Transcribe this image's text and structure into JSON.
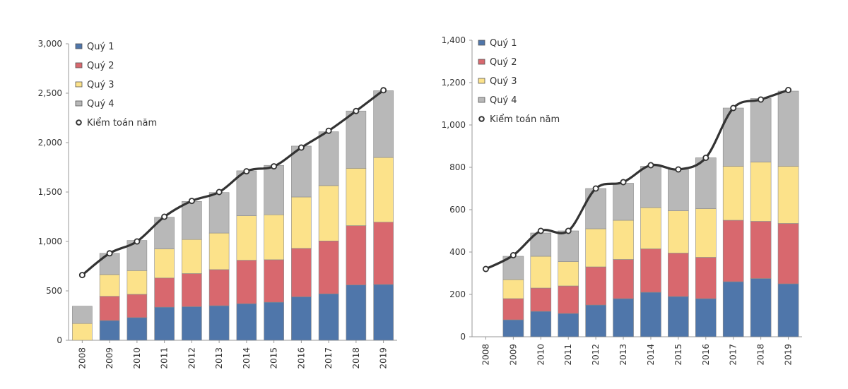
{
  "chart_data": [
    {
      "type": "bar",
      "stacked": true,
      "categories": [
        "2008",
        "2009",
        "2010",
        "2011",
        "2012",
        "2013",
        "2014",
        "2015",
        "2016",
        "2017",
        "2018",
        "2019"
      ],
      "ylim": [
        0,
        3000
      ],
      "yticks": [
        0,
        500,
        1000,
        1500,
        2000,
        2500,
        3000
      ],
      "ytick_labels": [
        "0",
        "500",
        "1,000",
        "1,500",
        "2,000",
        "2,500",
        "3,000"
      ],
      "series": [
        {
          "name": "Quý 1",
          "values": [
            0,
            200,
            230,
            335,
            340,
            350,
            370,
            385,
            440,
            470,
            560,
            565
          ]
        },
        {
          "name": "Quý 2",
          "values": [
            0,
            245,
            235,
            295,
            335,
            365,
            440,
            430,
            490,
            535,
            600,
            630
          ]
        },
        {
          "name": "Quý 3",
          "values": [
            170,
            220,
            240,
            295,
            345,
            370,
            450,
            455,
            520,
            560,
            580,
            655
          ]
        },
        {
          "name": "Quý 4",
          "values": [
            175,
            215,
            305,
            320,
            385,
            410,
            455,
            500,
            515,
            545,
            580,
            675
          ]
        }
      ],
      "line": {
        "name": "Kiểm toán năm",
        "values": [
          660,
          880,
          1000,
          1250,
          1410,
          1500,
          1710,
          1760,
          1950,
          2120,
          2320,
          2530
        ]
      },
      "legend": [
        "Quý 1",
        "Quý 2",
        "Quý 3",
        "Quý 4",
        "Kiểm toán năm"
      ],
      "legend_position": "top-left"
    },
    {
      "type": "bar",
      "stacked": true,
      "categories": [
        "2008",
        "2009",
        "2010",
        "2011",
        "2012",
        "2013",
        "2014",
        "2015",
        "2016",
        "2017",
        "2018",
        "2019"
      ],
      "ylim": [
        0,
        1400
      ],
      "yticks": [
        0,
        200,
        400,
        600,
        800,
        1000,
        1200,
        1400
      ],
      "ytick_labels": [
        "0",
        "200",
        "400",
        "600",
        "800",
        "1,000",
        "1,200",
        "1,400"
      ],
      "series": [
        {
          "name": "Quý 1",
          "values": [
            0,
            80,
            120,
            110,
            150,
            180,
            210,
            190,
            180,
            260,
            275,
            250
          ]
        },
        {
          "name": "Quý 2",
          "values": [
            0,
            100,
            110,
            130,
            180,
            185,
            205,
            205,
            195,
            290,
            270,
            285
          ]
        },
        {
          "name": "Quý 3",
          "values": [
            0,
            90,
            150,
            115,
            180,
            185,
            195,
            200,
            230,
            255,
            280,
            270
          ]
        },
        {
          "name": "Quý 4",
          "values": [
            0,
            110,
            110,
            145,
            190,
            175,
            195,
            195,
            240,
            275,
            300,
            355
          ]
        }
      ],
      "line": {
        "name": "Kiểm toán năm",
        "values": [
          320,
          385,
          500,
          500,
          700,
          730,
          810,
          790,
          845,
          1080,
          1120,
          1165
        ]
      },
      "legend": [
        "Quý 1",
        "Quý 2",
        "Quý 3",
        "Quý 4",
        "Kiểm toán năm"
      ],
      "legend_position": "top-left"
    }
  ],
  "colors": {
    "q1": "#4f76aa",
    "q2": "#d8686e",
    "q3": "#fce28a",
    "q4": "#b8b8b8",
    "line": "#333333",
    "axis": "#9a9a9a"
  }
}
